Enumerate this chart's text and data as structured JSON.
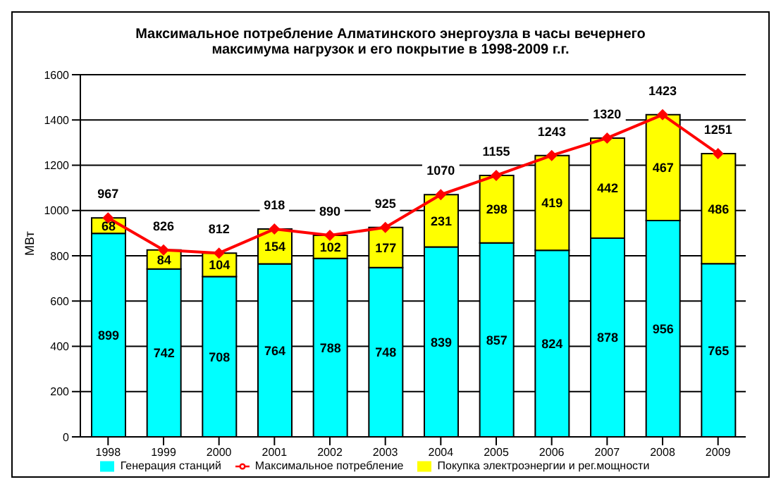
{
  "chart_data": {
    "type": "bar",
    "title": "Максимальное потребление Алматинского энергоузла в часы вечернего максимума нагрузок и его покрытие в 1998-2009 г.г.",
    "ylabel": "МВт",
    "categories": [
      "1998",
      "1999",
      "2000",
      "2001",
      "2002",
      "2003",
      "2004",
      "2005",
      "2006",
      "2007",
      "2008",
      "2009"
    ],
    "stacked": true,
    "series": [
      {
        "name": "Генерация станций",
        "color": "#00ffff",
        "values": [
          899,
          742,
          708,
          764,
          788,
          748,
          839,
          857,
          824,
          878,
          956,
          765
        ]
      },
      {
        "name": "Покупка электроэнергии и рег.мощности",
        "color": "#ffff00",
        "values": [
          68,
          84,
          104,
          154,
          102,
          177,
          231,
          298,
          419,
          442,
          467,
          486
        ]
      },
      {
        "name": "Максимальное потребление",
        "type": "line",
        "color": "#ff0000",
        "marker": "diamond",
        "values": [
          967,
          826,
          812,
          918,
          890,
          925,
          1070,
          1155,
          1243,
          1320,
          1423,
          1251
        ]
      }
    ],
    "ylim": [
      0,
      1600
    ],
    "yticks": [
      0,
      200,
      400,
      600,
      800,
      1000,
      1200,
      1400,
      1600
    ],
    "grid": "y",
    "legend": "bottom",
    "data_labels": true
  }
}
